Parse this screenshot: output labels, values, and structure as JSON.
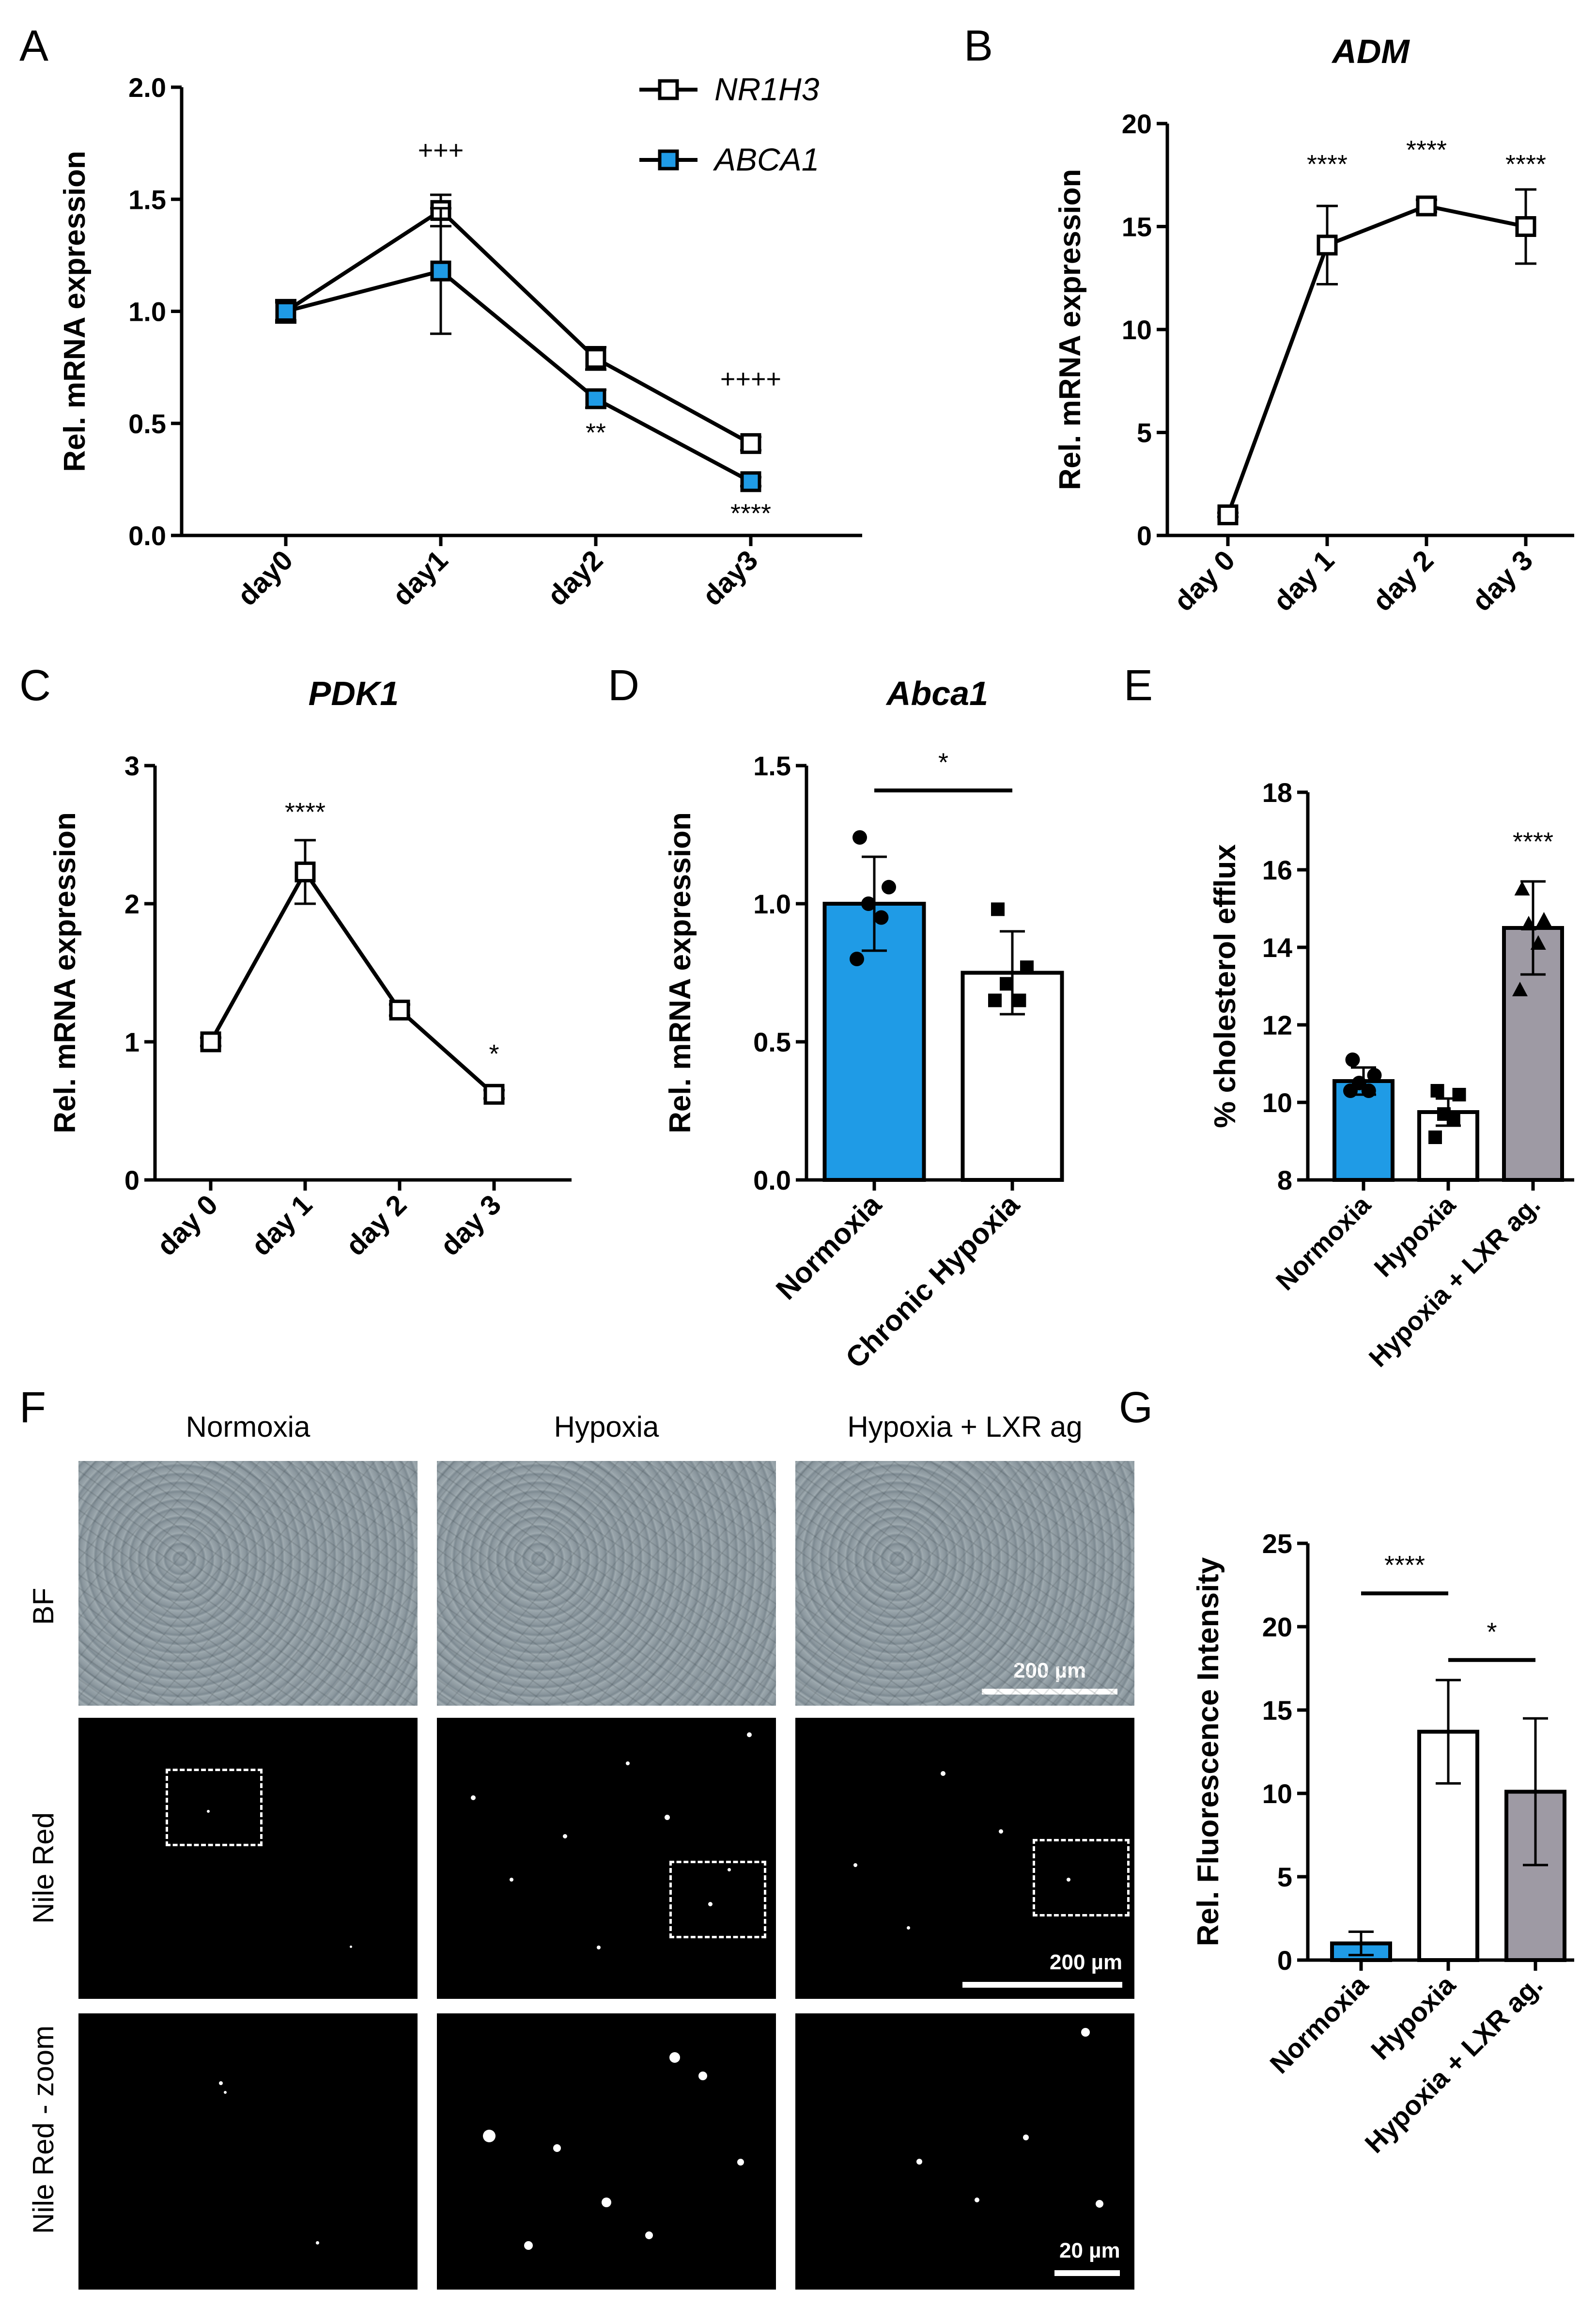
{
  "panels": {
    "A": {
      "letter": "A"
    },
    "B": {
      "letter": "B"
    },
    "C": {
      "letter": "C"
    },
    "D": {
      "letter": "D"
    },
    "E": {
      "letter": "E"
    },
    "F": {
      "letter": "F"
    },
    "G": {
      "letter": "G"
    }
  },
  "colors": {
    "blue": "#1f9be6",
    "white": "#ffffff",
    "grey": "#9e9aa4",
    "black": "#000000"
  },
  "chart_data": [
    {
      "id": "A",
      "type": "line",
      "title": "",
      "ylabel": "Rel. mRNA expression",
      "categories": [
        "day0",
        "day1",
        "day2",
        "day3"
      ],
      "ylim": [
        0,
        2.0
      ],
      "yticks": [
        "0.0",
        "0.5",
        "1.0",
        "1.5",
        "2.0"
      ],
      "legend_position": "top",
      "series": [
        {
          "name": "NR1H3",
          "marker": "open-square",
          "values": [
            1.0,
            1.45,
            0.79,
            0.41
          ],
          "errors": [
            0.04,
            0.07,
            0.05,
            0.03
          ]
        },
        {
          "name": "ABCA1",
          "marker": "blue-square",
          "values": [
            1.0,
            1.18,
            0.61,
            0.24
          ],
          "errors": [
            0.05,
            0.28,
            0.04,
            0.02
          ]
        }
      ],
      "annotations": [
        {
          "text": "+++",
          "x": "day1",
          "y": 1.68
        },
        {
          "text": "++++",
          "x": "day3",
          "y": 0.66
        },
        {
          "text": "**",
          "x": "day2",
          "y": 0.42
        },
        {
          "text": "****",
          "x": "day3",
          "y": 0.06
        }
      ]
    },
    {
      "id": "B",
      "type": "line",
      "title": "ADM",
      "ylabel": "Rel. mRNA expression",
      "categories": [
        "day 0",
        "day 1",
        "day 2",
        "day 3"
      ],
      "ylim": [
        0,
        20
      ],
      "yticks": [
        "0",
        "5",
        "10",
        "15",
        "20"
      ],
      "series": [
        {
          "name": "",
          "marker": "open-square",
          "values": [
            1.0,
            14.1,
            16.0,
            15.0
          ],
          "errors": [
            0.1,
            1.9,
            0.3,
            1.8
          ]
        }
      ],
      "annotations": [
        {
          "text": "****",
          "x": "day 1",
          "y": 17.6
        },
        {
          "text": "****",
          "x": "day 2",
          "y": 18.3
        },
        {
          "text": "****",
          "x": "day 3",
          "y": 17.6
        }
      ]
    },
    {
      "id": "C",
      "type": "line",
      "title": "PDK1",
      "ylabel": "Rel. mRNA expression",
      "categories": [
        "day 0",
        "day 1",
        "day 2",
        "day 3"
      ],
      "ylim": [
        0,
        3
      ],
      "yticks": [
        "0",
        "1",
        "2",
        "3"
      ],
      "series": [
        {
          "name": "",
          "marker": "open-square",
          "values": [
            1.0,
            2.23,
            1.23,
            0.62
          ],
          "errors": [
            0.03,
            0.23,
            0.04,
            0.03
          ]
        }
      ],
      "annotations": [
        {
          "text": "****",
          "x": "day 1",
          "y": 2.6
        },
        {
          "text": "*",
          "x": "day 3",
          "y": 0.85
        }
      ]
    },
    {
      "id": "D",
      "type": "bar",
      "title": "Abca1",
      "ylabel": "Rel. mRNA expression",
      "categories": [
        "Normoxia",
        "Chronic Hypoxia"
      ],
      "ylim": [
        0,
        1.5
      ],
      "yticks": [
        "0.0",
        "0.5",
        "1.0",
        "1.5"
      ],
      "values": [
        1.0,
        0.75
      ],
      "errors": [
        0.17,
        0.15
      ],
      "bar_colors": [
        "#1f9be6",
        "#ffffff"
      ],
      "points": [
        [
          1.24,
          1.06,
          1.0,
          0.95,
          0.8
        ],
        [
          0.98,
          0.77,
          0.71,
          0.65,
          0.65
        ]
      ],
      "point_markers": [
        "circle",
        "square"
      ],
      "annotations": [
        {
          "text": "*",
          "bracket": [
            0,
            1
          ],
          "y": 1.41
        }
      ]
    },
    {
      "id": "E",
      "type": "bar",
      "title": "",
      "ylabel": "% cholesterol efflux",
      "categories": [
        "Normoxia",
        "Hypoxia",
        "Hypoxia + LXR ag."
      ],
      "ylim": [
        8,
        18
      ],
      "yticks": [
        "8",
        "10",
        "12",
        "14",
        "16",
        "18"
      ],
      "values": [
        10.55,
        9.75,
        14.5
      ],
      "errors": [
        0.35,
        0.35,
        1.2
      ],
      "bar_colors": [
        "#1f9be6",
        "#ffffff",
        "#9e9aa4"
      ],
      "points": [
        [
          11.1,
          10.7,
          10.5,
          10.3,
          10.3
        ],
        [
          10.3,
          10.2,
          9.7,
          9.6,
          9.1
        ],
        [
          15.5,
          14.7,
          14.6,
          14.1,
          12.9
        ]
      ],
      "point_markers": [
        "circle",
        "square",
        "triangle"
      ],
      "annotations": [
        {
          "text": "****",
          "x": "Hypoxia + LXR ag.",
          "y": 16.5
        }
      ]
    },
    {
      "id": "G",
      "type": "bar",
      "title": "",
      "ylabel": "Rel. Fluorescence Intensity",
      "categories": [
        "Normoxia",
        "Hypoxia",
        "Hypoxia + LXR ag."
      ],
      "ylim": [
        0,
        25
      ],
      "yticks": [
        "0",
        "5",
        "10",
        "15",
        "20",
        "25"
      ],
      "values": [
        1.0,
        13.7,
        10.1
      ],
      "errors": [
        0.7,
        3.1,
        4.4
      ],
      "bar_colors": [
        "#1f9be6",
        "#ffffff",
        "#9e9aa4"
      ],
      "annotations": [
        {
          "text": "****",
          "bracket": [
            0,
            1
          ],
          "y": 22.0
        },
        {
          "text": "*",
          "bracket": [
            1,
            2
          ],
          "y": 18.0
        }
      ]
    }
  ],
  "micrographs": {
    "columns": [
      "Normoxia",
      "Hypoxia",
      "Hypoxia + LXR ag"
    ],
    "rows": [
      "BF",
      "Nile Red",
      "Nile Red - zoom"
    ],
    "scale_bars": {
      "BF": "200 µm",
      "Nile Red": "200 µm",
      "Nile Red - zoom": "20 µm"
    }
  }
}
